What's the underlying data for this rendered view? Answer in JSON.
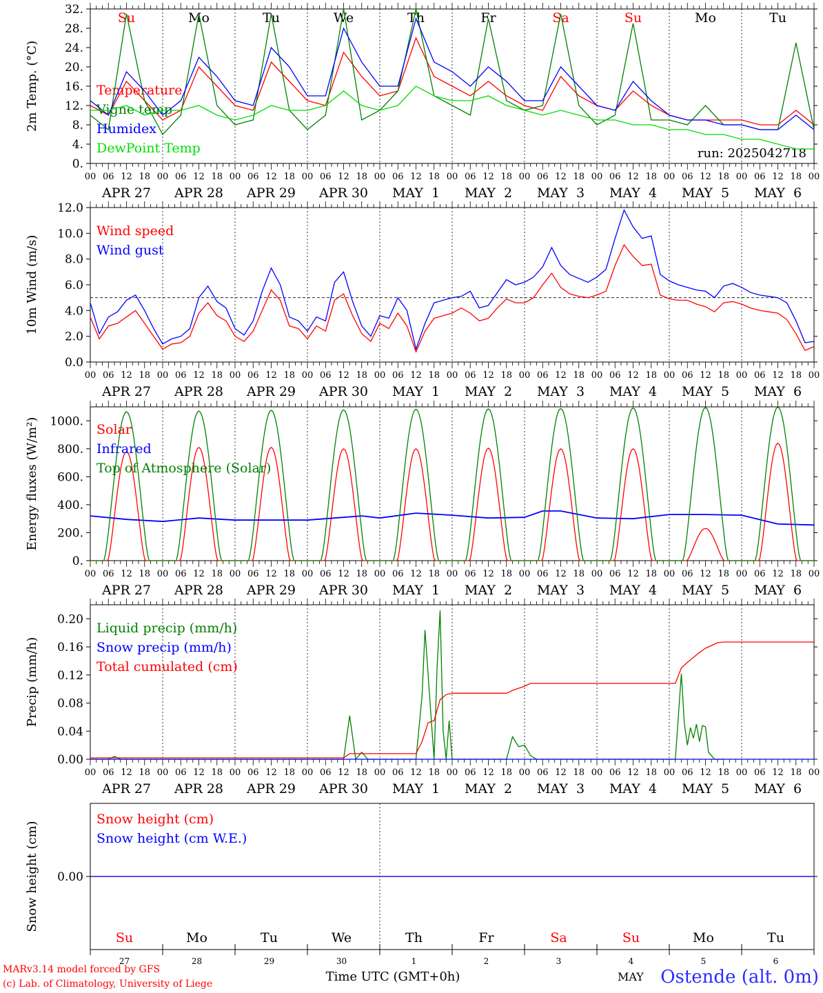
{
  "run_label": "run: 2025042718",
  "hour_ticks": [
    "00",
    "06",
    "12",
    "18"
  ],
  "final_hour": "00",
  "dates": [
    "APR 27",
    "APR 28",
    "APR 29",
    "APR 30",
    "MAY  1",
    "MAY  2",
    "MAY  3",
    "MAY  4",
    "MAY  5",
    "MAY  6"
  ],
  "weekdays": [
    {
      "label": "Su",
      "color": "#ff0000"
    },
    {
      "label": "Mo",
      "color": "#000000"
    },
    {
      "label": "Tu",
      "color": "#000000"
    },
    {
      "label": "We",
      "color": "#000000"
    },
    {
      "label": "Th",
      "color": "#000000"
    },
    {
      "label": "Fr",
      "color": "#000000"
    },
    {
      "label": "Sa",
      "color": "#ff0000"
    },
    {
      "label": "Su",
      "color": "#ff0000"
    },
    {
      "label": "Mo",
      "color": "#000000"
    },
    {
      "label": "Tu",
      "color": "#000000"
    }
  ],
  "day_numbers": [
    "27",
    "28",
    "29",
    "30",
    "1",
    "2",
    "3",
    "4",
    "5",
    "6"
  ],
  "footer": {
    "model": "MARv3.14 model forced by GFS",
    "lab": "(c) Lab. of Climatology, University of Liege",
    "time_axis": "Time UTC (GMT+0h)",
    "month": "MAY",
    "station": "Ostende (alt. 0m)"
  },
  "colors": {
    "red": "#ff0000",
    "green": "#008000",
    "blue": "#0000ff",
    "lightgreen": "#00dd00"
  },
  "chart_data": [
    {
      "type": "line",
      "ylabel": "2m Temp. (°C)",
      "ylim": [
        0,
        32
      ],
      "yticks": [
        "0.",
        "4.",
        "8.",
        "12.",
        "16.",
        "20.",
        "24.",
        "28.",
        "32."
      ],
      "x_unit": "hours since APR 27 00 UTC",
      "series": [
        {
          "name": "Temperature",
          "color": "#ff0000",
          "x": [
            0,
            6,
            12,
            18,
            24,
            30,
            36,
            42,
            48,
            54,
            60,
            66,
            72,
            78,
            84,
            90,
            96,
            102,
            108,
            114,
            120,
            126,
            132,
            138,
            144,
            150,
            156,
            162,
            168,
            174,
            180,
            186,
            192,
            198,
            204,
            210,
            216,
            222,
            228,
            234,
            240
          ],
          "y": [
            12,
            10,
            17,
            13,
            9,
            11,
            20,
            16,
            12,
            11,
            21,
            17,
            13,
            12,
            23,
            18,
            14,
            15,
            26,
            18,
            16,
            14,
            17,
            14,
            12,
            11,
            18,
            14,
            12,
            11,
            15,
            12,
            10,
            9,
            9,
            9,
            9,
            8,
            8,
            11,
            8
          ]
        },
        {
          "name": "Vigne temp",
          "color": "#008000",
          "x": [
            0,
            6,
            12,
            18,
            24,
            30,
            36,
            42,
            48,
            54,
            60,
            66,
            72,
            78,
            84,
            90,
            96,
            102,
            108,
            114,
            120,
            126,
            132,
            138,
            144,
            150,
            156,
            162,
            168,
            174,
            180,
            186,
            192,
            198,
            204,
            210,
            216,
            222,
            228,
            234,
            240
          ],
          "y": [
            10,
            7,
            31,
            13,
            6,
            10,
            31,
            12,
            8,
            9,
            31,
            11,
            7,
            10,
            32,
            9,
            11,
            15,
            32,
            14,
            12,
            10,
            30,
            13,
            11,
            12,
            31,
            12,
            8,
            10,
            29,
            9,
            9,
            8,
            12,
            8,
            8,
            7,
            7,
            25,
            7
          ]
        },
        {
          "name": "Humidex",
          "color": "#0000ff",
          "x": [
            0,
            6,
            12,
            18,
            24,
            30,
            36,
            42,
            48,
            54,
            60,
            66,
            72,
            78,
            84,
            90,
            96,
            102,
            108,
            114,
            120,
            126,
            132,
            138,
            144,
            150,
            156,
            162,
            168,
            174,
            180,
            186,
            192,
            198,
            204,
            210,
            216,
            222,
            228,
            234,
            240
          ],
          "y": [
            13,
            10,
            19,
            15,
            10,
            13,
            22,
            18,
            13,
            12,
            24,
            20,
            14,
            14,
            28,
            21,
            16,
            16,
            30,
            21,
            19,
            16,
            20,
            17,
            13,
            13,
            20,
            16,
            12,
            11,
            17,
            13,
            10,
            9,
            9,
            8,
            8,
            7,
            7,
            10,
            7
          ]
        },
        {
          "name": "DewPoint Temp",
          "color": "#00dd00",
          "x": [
            0,
            6,
            12,
            18,
            24,
            30,
            36,
            42,
            48,
            54,
            60,
            66,
            72,
            78,
            84,
            90,
            96,
            102,
            108,
            114,
            120,
            126,
            132,
            138,
            144,
            150,
            156,
            162,
            168,
            174,
            180,
            186,
            192,
            198,
            204,
            210,
            216,
            222,
            228,
            234,
            240
          ],
          "y": [
            11,
            11,
            12,
            10,
            11,
            11,
            12,
            10,
            9,
            10,
            12,
            11,
            11,
            12,
            15,
            12,
            11,
            12,
            16,
            14,
            13,
            13,
            14,
            12,
            11,
            10,
            11,
            10,
            9,
            9,
            8,
            8,
            7,
            7,
            6,
            6,
            5,
            5,
            4,
            3,
            3
          ]
        }
      ]
    },
    {
      "type": "line",
      "ylabel": "10m Wind (m/s)",
      "ylim": [
        0,
        12
      ],
      "yticks": [
        "0.0",
        "2.0",
        "4.0",
        "6.0",
        "8.0",
        "10.0",
        "12.0"
      ],
      "reference_line": 5,
      "x_unit": "hours since APR 27 00 UTC",
      "series": [
        {
          "name": "Wind speed",
          "color": "#ff0000",
          "x": [
            0,
            3,
            6,
            9,
            12,
            15,
            18,
            21,
            24,
            27,
            30,
            33,
            36,
            39,
            42,
            45,
            48,
            51,
            54,
            57,
            60,
            63,
            66,
            69,
            72,
            75,
            78,
            81,
            84,
            87,
            90,
            93,
            96,
            99,
            102,
            105,
            108,
            111,
            114,
            117,
            120,
            123,
            126,
            129,
            132,
            135,
            138,
            141,
            144,
            147,
            150,
            153,
            156,
            159,
            162,
            165,
            168,
            171,
            174,
            177,
            180,
            183,
            186,
            189,
            192,
            195,
            198,
            201,
            204,
            207,
            210,
            213,
            216,
            219,
            222,
            225,
            228,
            231,
            234,
            237,
            240
          ],
          "y": [
            3.5,
            1.8,
            2.8,
            3.0,
            3.5,
            4.0,
            3.0,
            2.0,
            1.0,
            1.4,
            1.5,
            2.0,
            3.8,
            4.6,
            3.6,
            3.2,
            2.0,
            1.6,
            2.4,
            4.0,
            5.6,
            4.8,
            2.8,
            2.6,
            1.8,
            2.8,
            2.4,
            4.8,
            5.3,
            3.6,
            2.2,
            1.6,
            3.0,
            2.6,
            3.8,
            2.8,
            0.8,
            2.4,
            3.4,
            3.6,
            3.8,
            4.2,
            3.8,
            3.2,
            3.4,
            4.2,
            4.9,
            4.6,
            4.6,
            5.0,
            6.0,
            6.9,
            5.8,
            5.3,
            5.1,
            5.0,
            5.2,
            5.5,
            7.5,
            9.1,
            8.2,
            7.5,
            7.6,
            5.2,
            4.9,
            4.8,
            4.8,
            4.5,
            4.3,
            3.9,
            4.6,
            4.7,
            4.5,
            4.2,
            4.0,
            3.9,
            3.8,
            3.3,
            2.2,
            0.9,
            1.2
          ]
        },
        {
          "name": "Wind gust",
          "color": "#0000ff",
          "x": [
            0,
            3,
            6,
            9,
            12,
            15,
            18,
            21,
            24,
            27,
            30,
            33,
            36,
            39,
            42,
            45,
            48,
            51,
            54,
            57,
            60,
            63,
            66,
            69,
            72,
            75,
            78,
            81,
            84,
            87,
            90,
            93,
            96,
            99,
            102,
            105,
            108,
            111,
            114,
            117,
            120,
            123,
            126,
            129,
            132,
            135,
            138,
            141,
            144,
            147,
            150,
            153,
            156,
            159,
            162,
            165,
            168,
            171,
            174,
            177,
            180,
            183,
            186,
            189,
            192,
            195,
            198,
            201,
            204,
            207,
            210,
            213,
            216,
            219,
            222,
            225,
            228,
            231,
            234,
            237,
            240
          ],
          "y": [
            4.6,
            2.2,
            3.5,
            3.9,
            4.8,
            5.2,
            4.0,
            2.6,
            1.4,
            1.8,
            2.0,
            2.6,
            5.0,
            5.9,
            4.7,
            4.2,
            2.6,
            2.1,
            3.2,
            5.5,
            7.3,
            6.0,
            3.5,
            3.2,
            2.4,
            3.5,
            3.2,
            6.2,
            7.0,
            4.7,
            2.8,
            2.0,
            3.6,
            3.4,
            5.0,
            4.0,
            1.0,
            3.0,
            4.6,
            4.8,
            5.0,
            5.1,
            5.5,
            4.2,
            4.4,
            5.4,
            6.4,
            6.0,
            6.2,
            6.6,
            7.4,
            8.9,
            7.5,
            6.8,
            6.5,
            6.2,
            6.6,
            7.2,
            9.6,
            11.8,
            10.5,
            9.6,
            9.8,
            6.8,
            6.3,
            6.0,
            5.8,
            5.6,
            5.5,
            5.0,
            5.9,
            6.1,
            5.8,
            5.4,
            5.2,
            5.1,
            5.0,
            4.6,
            3.2,
            1.5,
            1.6
          ]
        }
      ]
    },
    {
      "type": "line",
      "ylabel": "Energy fluxes (W/m²)",
      "ylim": [
        0,
        1100
      ],
      "yticks": [
        "0.",
        "200.",
        "400.",
        "600.",
        "800.",
        "1000."
      ],
      "x_unit": "hours since APR 27 00 UTC",
      "series": [
        {
          "name": "Solar",
          "color": "#ff0000",
          "day_peaks": [
            780,
            810,
            810,
            800,
            800,
            805,
            800,
            800,
            230,
            840
          ]
        },
        {
          "name": "Infrared",
          "color": "#0000ff",
          "x": [
            0,
            12,
            24,
            36,
            48,
            60,
            72,
            84,
            90,
            96,
            108,
            120,
            132,
            144,
            150,
            156,
            168,
            180,
            192,
            204,
            216,
            228,
            240
          ],
          "y": [
            320,
            295,
            280,
            305,
            290,
            290,
            290,
            310,
            320,
            305,
            340,
            325,
            305,
            310,
            355,
            355,
            305,
            300,
            330,
            330,
            325,
            262,
            255
          ]
        },
        {
          "name": "Top of Atmosphere (Solar)",
          "color": "#008000",
          "day_peaks": [
            1065,
            1070,
            1075,
            1078,
            1082,
            1085,
            1088,
            1092,
            1095,
            1098
          ]
        }
      ]
    },
    {
      "type": "line",
      "ylabel": "Precip (mm/h)",
      "ylim": [
        0,
        0.22
      ],
      "yticks": [
        "0.00",
        "0.04",
        "0.08",
        "0.12",
        "0.16",
        "0.20"
      ],
      "x_unit": "hours since APR 27 00 UTC",
      "series": [
        {
          "name": "Liquid precip (mm/h)",
          "color": "#008000",
          "x": [
            0,
            6,
            8,
            10,
            84,
            86,
            88,
            90,
            92,
            108,
            110,
            111,
            113,
            114,
            115,
            116,
            117,
            118,
            119,
            120,
            122,
            138,
            140,
            142,
            144,
            146,
            148,
            194,
            196,
            197,
            198,
            199,
            200,
            201,
            202,
            203,
            204,
            205,
            206,
            207,
            208,
            210
          ],
          "y": [
            0,
            0,
            0.004,
            0,
            0,
            0.062,
            0,
            0.01,
            0,
            0,
            0.09,
            0.184,
            0.06,
            0,
            0.13,
            0.212,
            0.04,
            0,
            0.055,
            0,
            0,
            0,
            0.032,
            0.018,
            0.02,
            0.005,
            0,
            0,
            0.122,
            0.05,
            0.02,
            0.045,
            0.03,
            0.05,
            0.025,
            0.048,
            0.046,
            0.01,
            0.005,
            0,
            0,
            0
          ]
        },
        {
          "name": "Snow precip (mm/h)",
          "color": "#0000ff",
          "x": [
            0,
            240
          ],
          "y": [
            0,
            0
          ]
        },
        {
          "name": "Total cumulated (cm)",
          "color": "#ff0000",
          "x": [
            0,
            84,
            86,
            108,
            110,
            112,
            114,
            116,
            118,
            120,
            138,
            140,
            144,
            146,
            150,
            190,
            194,
            196,
            198,
            200,
            202,
            204,
            206,
            208,
            210,
            240
          ],
          "y": [
            0.002,
            0.002,
            0.008,
            0.008,
            0.025,
            0.052,
            0.055,
            0.085,
            0.092,
            0.094,
            0.094,
            0.098,
            0.104,
            0.108,
            0.108,
            0.108,
            0.108,
            0.13,
            0.138,
            0.145,
            0.152,
            0.158,
            0.162,
            0.166,
            0.167,
            0.167
          ]
        }
      ]
    },
    {
      "type": "line",
      "ylabel": "Snow height (cm)",
      "yticks": [
        "0.00"
      ],
      "x_unit": "hours since APR 27 00 UTC",
      "series": [
        {
          "name": "Snow height (cm)",
          "color": "#ff0000",
          "x": [
            0,
            240
          ],
          "y": [
            0,
            0
          ]
        },
        {
          "name": "Snow height (cm W.E.)",
          "color": "#0000ff",
          "x": [
            0,
            240
          ],
          "y": [
            0,
            0
          ]
        }
      ]
    }
  ]
}
